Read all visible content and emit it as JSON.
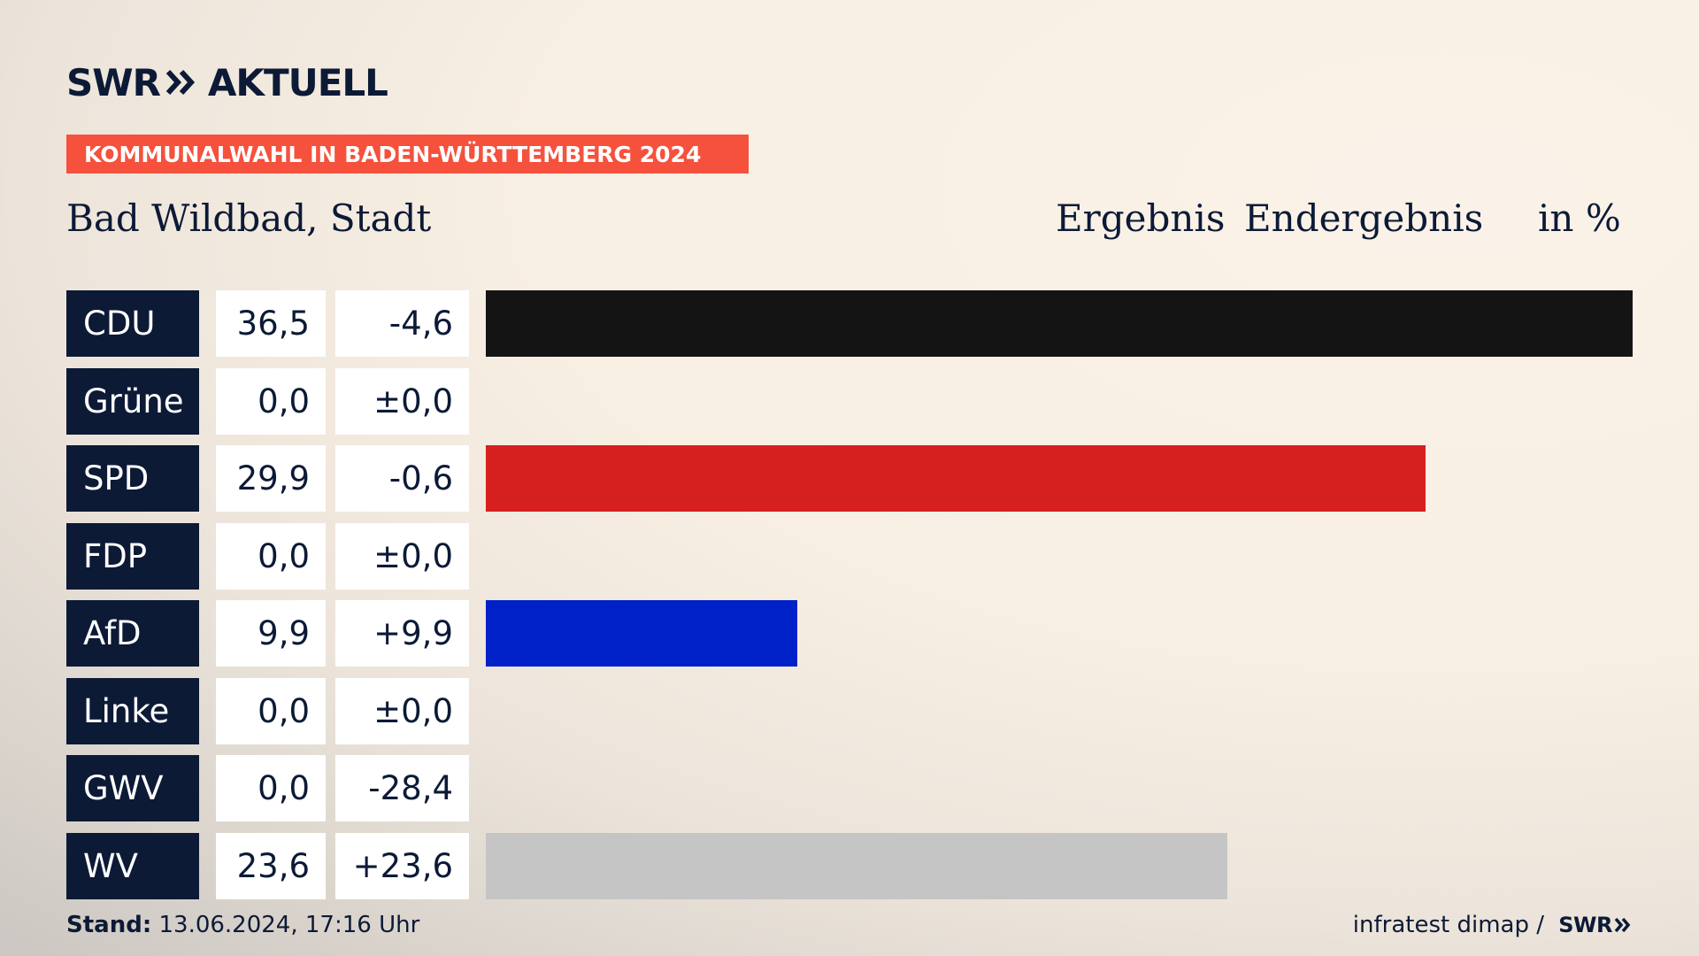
{
  "header": {
    "logo_primary": "SWR",
    "logo_secondary": "AKTUELL",
    "banner": "KOMMUNALWAHL IN BADEN-WÜRTTEMBERG 2024",
    "region": "Bad Wildbad, Stadt",
    "col_result": "Ergebnis",
    "col_status": "Endergebnis",
    "col_unit": "in %"
  },
  "chart_data": {
    "type": "bar",
    "orientation": "horizontal",
    "title": "KOMMUNALWAHL IN BADEN-WÜRTTEMBERG 2024",
    "subtitle": "Bad Wildbad, Stadt",
    "unit": "in %",
    "xlim": [
      0,
      36.5
    ],
    "categories": [
      "CDU",
      "Grüne",
      "SPD",
      "FDP",
      "AfD",
      "Linke",
      "GWV",
      "WV"
    ],
    "values": [
      36.5,
      0.0,
      29.9,
      0.0,
      9.9,
      0.0,
      0.0,
      23.6
    ],
    "value_labels": [
      "36,5",
      "0,0",
      "29,9",
      "0,0",
      "9,9",
      "0,0",
      "0,0",
      "23,6"
    ],
    "changes": [
      -4.6,
      0.0,
      -0.6,
      0.0,
      9.9,
      0.0,
      -28.4,
      23.6
    ],
    "change_labels": [
      "-4,6",
      "±0,0",
      "-0,6",
      "±0,0",
      "+9,9",
      "±0,0",
      "-28,4",
      "+23,6"
    ],
    "colors": [
      "#141414",
      "#3a9a3a",
      "#d6201f",
      "#f1d100",
      "#0021c8",
      "#b0006e",
      "#c5c5c5",
      "#c5c5c5"
    ]
  },
  "footer": {
    "stand_label": "Stand:",
    "stand_value": "13.06.2024, 17:16 Uhr",
    "source": "infratest dimap / ",
    "source_logo": "SWR"
  }
}
